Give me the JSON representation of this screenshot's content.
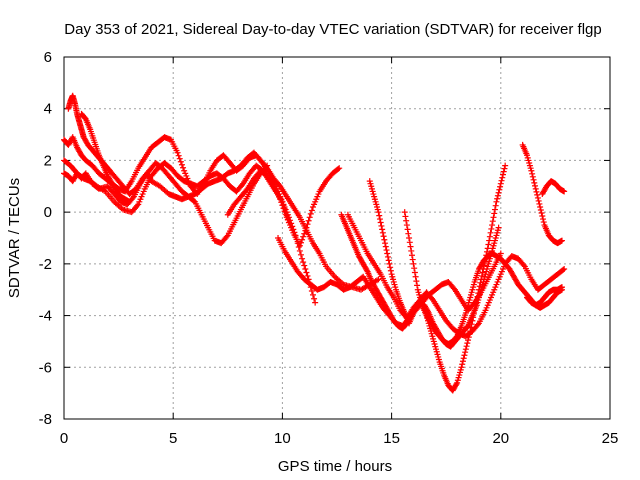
{
  "chart_data": {
    "type": "scatter",
    "title": "Day 353 of 2021, Sidereal Day-to-day VTEC variation (SDTVAR) for receiver flgp",
    "xlabel": "GPS time / hours",
    "ylabel": "SDTVAR / TECUs",
    "xlim": [
      0,
      25
    ],
    "ylim": [
      -8,
      6
    ],
    "xticks": [
      "0",
      "5",
      "10",
      "15",
      "20",
      "25"
    ],
    "yticks": [
      "-8",
      "-6",
      "-4",
      "-2",
      "0",
      "2",
      "4",
      "6"
    ],
    "grid": true,
    "marker": "+",
    "color": "#ff0000",
    "tracks": [
      {
        "x": [
          0,
          0.3,
          0.5,
          0.8,
          1.0,
          1.3,
          1.6,
          2.0,
          2.3,
          2.6,
          2.9,
          3.2,
          3.5,
          3.8,
          4.0,
          4.4,
          4.8,
          5.1,
          5.4,
          5.7,
          6.0,
          6.3,
          6.6,
          6.9,
          7.2,
          7.5,
          7.8,
          8.1,
          8.4,
          8.7,
          9.0,
          9.3,
          9.6,
          9.9,
          10.2,
          10.5,
          10.8,
          11.1,
          11.4,
          11.7,
          12.0,
          12.4,
          12.8,
          13.2,
          13.6,
          14.0,
          14.4
        ],
        "y": [
          2.0,
          1.8,
          1.6,
          1.3,
          1.5,
          1.1,
          0.9,
          1.0,
          0.7,
          0.4,
          0.3,
          0.6,
          1.1,
          1.5,
          1.2,
          1.0,
          0.7,
          0.6,
          0.5,
          0.6,
          0.7,
          0.9,
          1.1,
          1.2,
          1.3,
          1.5,
          1.6,
          1.8,
          2.1,
          2.3,
          2.0,
          1.7,
          1.3,
          1.0,
          0.6,
          0.2,
          -0.2,
          -0.7,
          -1.2,
          -1.6,
          -2.1,
          -2.5,
          -2.8,
          -2.9,
          -3.0,
          -2.8,
          -2.6
        ]
      },
      {
        "x": [
          0,
          0.2,
          0.4,
          0.6,
          0.9,
          1.2,
          1.5,
          1.9,
          2.3,
          2.7,
          3.1,
          3.4,
          3.7,
          4.0,
          4.3,
          4.6,
          4.9,
          5.2,
          5.5,
          5.8,
          6.1,
          6.4,
          6.7,
          7.0,
          7.3,
          7.6,
          7.9,
          8.2,
          8.5,
          8.8,
          9.1,
          9.4,
          9.7,
          10.0,
          10.3,
          10.6,
          10.9,
          11.2,
          11.5
        ],
        "y": [
          1.5,
          1.4,
          1.2,
          1.5,
          1.3,
          1.2,
          1.0,
          0.8,
          0.4,
          0.1,
          0.0,
          0.3,
          0.9,
          1.4,
          1.7,
          1.9,
          1.7,
          1.4,
          1.2,
          1.1,
          1.0,
          1.2,
          1.4,
          1.5,
          1.3,
          1.0,
          0.8,
          1.1,
          1.5,
          1.8,
          1.6,
          1.2,
          0.8,
          0.4,
          -0.2,
          -0.9,
          -1.8,
          -2.6,
          -3.5
        ]
      },
      {
        "x": [
          0,
          0.2,
          0.4,
          0.6,
          0.8,
          1.0,
          1.3,
          1.6,
          1.9,
          2.2,
          2.5,
          2.8,
          3.1,
          3.4,
          3.7,
          4.0,
          4.3,
          4.6,
          4.9,
          5.2,
          5.5,
          5.8,
          6.1,
          6.4,
          6.7,
          7.0,
          7.3,
          7.6,
          7.9,
          8.2,
          8.5,
          8.8,
          9.1,
          9.4,
          9.7,
          10.0,
          10.3
        ],
        "y": [
          2.8,
          2.6,
          2.9,
          2.5,
          2.2,
          2.0,
          1.8,
          1.5,
          1.3,
          1.1,
          0.9,
          0.8,
          1.2,
          1.7,
          2.1,
          2.5,
          2.7,
          2.9,
          2.8,
          2.3,
          1.6,
          1.0,
          0.7,
          1.1,
          1.6,
          2.0,
          2.2,
          1.9,
          1.6,
          1.8,
          2.1,
          2.2,
          1.9,
          1.5,
          1.0,
          0.4,
          -0.4
        ]
      },
      {
        "x": [
          0.2,
          0.3,
          0.4,
          0.5,
          0.6,
          0.7,
          0.8,
          0.9,
          1.1,
          1.3,
          1.5,
          1.7,
          1.9,
          2.1,
          2.4,
          2.7,
          3.0,
          3.3,
          3.6,
          3.9,
          4.2,
          4.5,
          4.8,
          5.1,
          5.4,
          5.7,
          6.0,
          6.3,
          6.6,
          6.9,
          7.2,
          7.5,
          7.8,
          8.1,
          8.4,
          8.7,
          9.0,
          9.3
        ],
        "y": [
          4.0,
          4.3,
          4.5,
          4.2,
          3.8,
          3.5,
          3.2,
          2.9,
          2.6,
          2.4,
          2.2,
          2.0,
          1.8,
          1.6,
          1.3,
          1.0,
          0.7,
          0.9,
          1.3,
          1.6,
          1.9,
          1.7,
          1.4,
          1.1,
          0.8,
          0.6,
          0.4,
          -0.1,
          -0.6,
          -1.1,
          -1.2,
          -0.9,
          -0.4,
          0.1,
          0.6,
          1.1,
          1.5,
          1.8
        ]
      },
      {
        "x": [
          0.8,
          1.0,
          1.2,
          1.4,
          1.6,
          1.8,
          2.0,
          2.2,
          2.4,
          2.6,
          2.8,
          3.0
        ],
        "y": [
          3.8,
          3.6,
          3.2,
          2.7,
          2.2,
          1.8,
          1.4,
          1.1,
          0.8,
          0.6,
          0.5,
          0.4
        ]
      },
      {
        "x": [
          7.5,
          7.8,
          8.1,
          8.4,
          8.7,
          9.0,
          9.3,
          9.6,
          9.9,
          10.2,
          10.5,
          10.8,
          11.1,
          11.4,
          11.7,
          12.0,
          12.3,
          12.6
        ],
        "y": [
          -0.1,
          0.3,
          0.6,
          0.9,
          1.3,
          1.6,
          1.4,
          1.0,
          0.5,
          -0.2,
          -0.8,
          -1.3,
          -0.6,
          0.2,
          0.8,
          1.2,
          1.5,
          1.7
        ]
      },
      {
        "x": [
          9.8,
          10.1,
          10.4,
          10.7,
          11.0,
          11.3,
          11.6,
          11.9,
          12.2,
          12.5,
          12.8,
          13.1,
          13.4,
          13.7,
          14.0,
          14.3,
          14.6,
          14.9,
          15.2,
          15.5,
          15.8,
          16.1,
          16.4,
          16.7,
          17.0,
          17.3,
          17.6,
          17.9,
          18.2,
          18.5,
          18.8,
          19.1,
          19.4,
          19.7,
          20.0
        ],
        "y": [
          -1.0,
          -1.5,
          -1.9,
          -2.3,
          -2.6,
          -2.8,
          -3.0,
          -2.9,
          -2.7,
          -2.8,
          -3.0,
          -2.9,
          -2.7,
          -2.5,
          -2.9,
          -3.3,
          -3.7,
          -4.0,
          -4.3,
          -4.4,
          -4.1,
          -3.8,
          -3.5,
          -3.2,
          -3.0,
          -2.8,
          -2.7,
          -3.0,
          -3.4,
          -3.8,
          -3.5,
          -3.1,
          -2.6,
          -2.1,
          -1.6
        ]
      },
      {
        "x": [
          13.0,
          13.3,
          13.6,
          13.9,
          14.2,
          14.5,
          14.8,
          15.1,
          15.4,
          15.7,
          16.0,
          16.3,
          16.6,
          16.9,
          17.2,
          17.5,
          17.8,
          18.1,
          18.4,
          18.7,
          19.0,
          19.3,
          19.6,
          19.9,
          20.2,
          20.5,
          20.8,
          21.1,
          21.4,
          21.7,
          22.0,
          22.3,
          22.6,
          22.9
        ],
        "y": [
          -0.1,
          -0.6,
          -1.1,
          -1.6,
          -2.0,
          -2.4,
          -2.9,
          -3.3,
          -3.8,
          -4.1,
          -3.7,
          -3.4,
          -3.1,
          -3.4,
          -3.8,
          -4.2,
          -4.5,
          -4.7,
          -4.8,
          -4.6,
          -4.3,
          -3.8,
          -3.2,
          -2.6,
          -2.0,
          -1.7,
          -1.8,
          -2.1,
          -2.6,
          -3.0,
          -2.8,
          -2.6,
          -2.4,
          -2.2
        ]
      },
      {
        "x": [
          14.0,
          14.2,
          14.4,
          14.6,
          14.8,
          15.0,
          15.2,
          15.4,
          15.6,
          15.8,
          16.0,
          16.2,
          16.4,
          16.6,
          16.8,
          17.0,
          17.2,
          17.4,
          17.6,
          17.8,
          18.0,
          18.2,
          18.4,
          18.6,
          18.8,
          19.0,
          19.2,
          19.4,
          19.6,
          19.8,
          20.0,
          20.2
        ],
        "y": [
          1.2,
          0.6,
          0.0,
          -0.8,
          -1.6,
          -2.4,
          -3.0,
          -3.5,
          -3.9,
          -4.3,
          -3.9,
          -3.5,
          -3.6,
          -4.0,
          -4.6,
          -5.2,
          -5.8,
          -6.3,
          -6.7,
          -6.9,
          -6.6,
          -6.0,
          -5.3,
          -4.6,
          -3.8,
          -3.0,
          -2.2,
          -1.4,
          -0.5,
          0.4,
          1.1,
          1.8
        ]
      },
      {
        "x": [
          12.7,
          12.9,
          13.1,
          13.3,
          13.5,
          13.7,
          13.9,
          14.1,
          14.3,
          14.5,
          14.7,
          14.9,
          15.1,
          15.3,
          15.5,
          15.7,
          15.9,
          16.1,
          16.3,
          16.5,
          16.7,
          16.9,
          17.1,
          17.3,
          17.5,
          17.7,
          17.9,
          18.1,
          18.3,
          18.5,
          18.7,
          18.9,
          19.1,
          19.3,
          19.5,
          19.7,
          19.9
        ],
        "y": [
          -0.1,
          -0.5,
          -0.9,
          -1.3,
          -1.7,
          -2.0,
          -2.3,
          -2.7,
          -3.0,
          -3.3,
          -3.6,
          -3.9,
          -4.2,
          -4.4,
          -4.5,
          -4.3,
          -4.0,
          -3.7,
          -3.5,
          -3.6,
          -3.9,
          -4.3,
          -4.6,
          -4.9,
          -5.1,
          -5.2,
          -5.0,
          -4.8,
          -4.6,
          -4.4,
          -4.0,
          -3.6,
          -3.0,
          -2.4,
          -1.8,
          -1.2,
          -0.6
        ]
      },
      {
        "x": [
          15.6,
          15.8,
          16.0,
          16.2,
          16.4,
          16.6,
          16.8,
          17.0,
          17.2,
          17.4,
          17.6,
          17.8,
          18.0,
          18.2,
          18.4,
          18.6,
          18.8,
          19.0,
          19.2,
          19.4,
          19.6,
          19.8,
          20.0,
          20.2,
          20.4,
          20.6,
          20.8,
          21.0,
          21.2,
          21.4,
          21.6,
          21.8,
          22.0,
          22.2,
          22.4,
          22.6,
          22.8
        ],
        "y": [
          0.0,
          -1.0,
          -2.0,
          -3.0,
          -3.6,
          -4.0,
          -4.3,
          -4.6,
          -4.8,
          -5.0,
          -5.1,
          -5.0,
          -4.8,
          -4.4,
          -3.9,
          -3.3,
          -2.7,
          -2.2,
          -1.9,
          -1.7,
          -1.6,
          -1.7,
          -1.8,
          -2.0,
          -2.2,
          -2.5,
          -2.8,
          -3.0,
          -3.2,
          -3.4,
          -3.6,
          -3.5,
          -3.3,
          -3.1,
          -3.0,
          -3.0,
          -2.9
        ]
      },
      {
        "x": [
          21.0,
          21.2,
          21.4,
          21.6,
          21.8,
          22.0,
          22.2,
          22.4,
          22.6,
          22.8
        ],
        "y": [
          2.6,
          2.2,
          1.6,
          0.9,
          0.2,
          -0.5,
          -0.9,
          -1.1,
          -1.2,
          -1.1
        ]
      },
      {
        "x": [
          21.9,
          22.1,
          22.3,
          22.5,
          22.7,
          22.9
        ],
        "y": [
          0.7,
          1.0,
          1.2,
          1.1,
          0.9,
          0.8
        ]
      },
      {
        "x": [
          21.2,
          21.4,
          21.6,
          21.8,
          22.0,
          22.2,
          22.4,
          22.6,
          22.8
        ],
        "y": [
          -3.3,
          -3.5,
          -3.6,
          -3.7,
          -3.6,
          -3.5,
          -3.3,
          -3.1,
          -3.0
        ]
      }
    ]
  }
}
